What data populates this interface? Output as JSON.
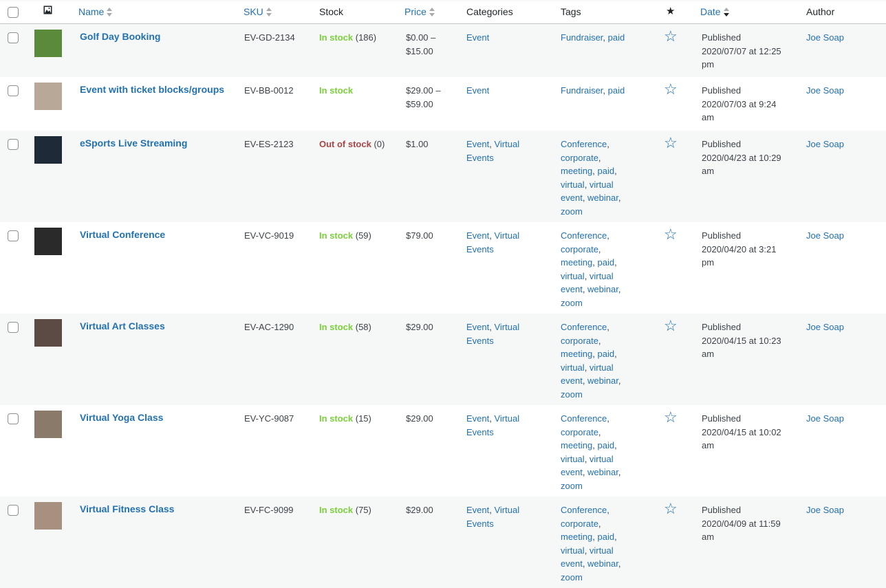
{
  "header": {
    "name": "Name",
    "sku": "SKU",
    "stock": "Stock",
    "price": "Price",
    "categories": "Categories",
    "tags": "Tags",
    "featured_icon": "star-filled",
    "date": "Date",
    "author": "Author"
  },
  "colors": {
    "link": "#2271b1",
    "in_stock": "#7ad03a",
    "out_of_stock": "#aa4444",
    "alt_row": "#f6f7f7"
  },
  "rows": [
    {
      "name": "Golf Day Booking",
      "sku": "EV-GD-2134",
      "stock_status": "In stock",
      "stock_qty": "(186)",
      "in_stock": true,
      "price": [
        "$0.00 –",
        "$15.00"
      ],
      "categories": [
        "Event"
      ],
      "tags": [
        "Fundraiser",
        "paid"
      ],
      "date": [
        "Published",
        "2020/07/07 at 12:25",
        "pm"
      ],
      "author": "Joe Soap",
      "thumb": "#5a8a3a",
      "height": 77
    },
    {
      "name": "Event with ticket blocks/groups",
      "sku": "EV-BB-0012",
      "stock_status": "In stock",
      "stock_qty": "",
      "in_stock": true,
      "price": [
        "$29.00 –",
        "$59.00"
      ],
      "categories": [
        "Event"
      ],
      "tags": [
        "Fundraiser",
        "paid"
      ],
      "date": [
        "Published",
        "2020/07/03 at 9:24",
        "am"
      ],
      "author": "Joe Soap",
      "thumb": "#b8a898",
      "height": 78
    },
    {
      "name": "eSports Live Streaming",
      "sku": "EV-ES-2123",
      "stock_status": "Out of stock",
      "stock_qty": "(0)",
      "in_stock": false,
      "price": [
        "$1.00"
      ],
      "categories": [
        "Event",
        "Virtual Events"
      ],
      "tags": [
        "Conference",
        "corporate",
        "meeting",
        "paid",
        "virtual",
        "virtual event",
        "webinar",
        "zoom"
      ],
      "date": [
        "Published",
        "2020/04/23 at 10:29",
        "am"
      ],
      "author": "Joe Soap",
      "thumb": "#1e2a38",
      "height": 133
    },
    {
      "name": "Virtual Conference",
      "sku": "EV-VC-9019",
      "stock_status": "In stock",
      "stock_qty": "(59)",
      "in_stock": true,
      "price": [
        "$79.00"
      ],
      "categories": [
        "Event",
        "Virtual Events"
      ],
      "tags": [
        "Conference",
        "corporate",
        "meeting",
        "paid",
        "virtual",
        "virtual event",
        "webinar",
        "zoom"
      ],
      "date": [
        "Published",
        "2020/04/20 at 3:21",
        "pm"
      ],
      "author": "Joe Soap",
      "thumb": "#2a2a2a",
      "height": 133
    },
    {
      "name": "Virtual Art Classes",
      "sku": "EV-AC-1290",
      "stock_status": "In stock",
      "stock_qty": "(58)",
      "in_stock": true,
      "price": [
        "$29.00"
      ],
      "categories": [
        "Event",
        "Virtual Events"
      ],
      "tags": [
        "Conference",
        "corporate",
        "meeting",
        "paid",
        "virtual",
        "virtual event",
        "webinar",
        "zoom"
      ],
      "date": [
        "Published",
        "2020/04/15 at 10:23",
        "am"
      ],
      "author": "Joe Soap",
      "thumb": "#5b4b44",
      "height": 133
    },
    {
      "name": "Virtual Yoga Class",
      "sku": "EV-YC-9087",
      "stock_status": "In stock",
      "stock_qty": "(15)",
      "in_stock": true,
      "price": [
        "$29.00"
      ],
      "categories": [
        "Event",
        "Virtual Events"
      ],
      "tags": [
        "Conference",
        "corporate",
        "meeting",
        "paid",
        "virtual",
        "virtual event",
        "webinar",
        "zoom"
      ],
      "date": [
        "Published",
        "2020/04/15 at 10:02",
        "am"
      ],
      "author": "Joe Soap",
      "thumb": "#8a7a6a",
      "height": 133
    },
    {
      "name": "Virtual Fitness Class",
      "sku": "EV-FC-9099",
      "stock_status": "In stock",
      "stock_qty": "(75)",
      "in_stock": true,
      "price": [
        "$29.00"
      ],
      "categories": [
        "Event",
        "Virtual Events"
      ],
      "tags": [
        "Conference",
        "corporate",
        "meeting",
        "paid",
        "virtual",
        "virtual event",
        "webinar",
        "zoom"
      ],
      "date": [
        "Published",
        "2020/04/09 at 11:59",
        "am"
      ],
      "author": "Joe Soap",
      "thumb": "#a89080",
      "height": 133
    }
  ]
}
